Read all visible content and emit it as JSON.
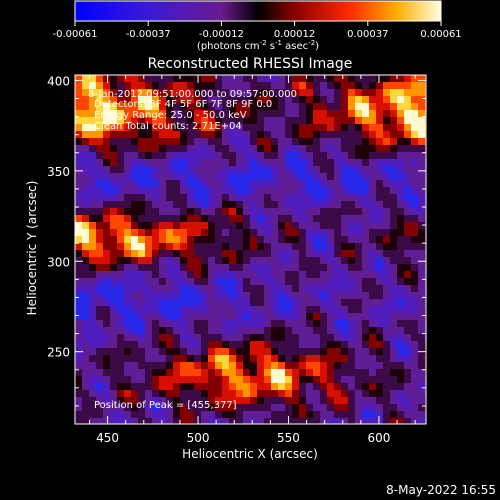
{
  "chart_data": {
    "type": "heatmap",
    "title": "Reconstructed RHESSI Image",
    "xlabel": "Heliocentric X (arcsec)",
    "ylabel": "Heliocentric Y (arcsec)",
    "xlim": [
      432,
      626
    ],
    "ylim": [
      210,
      403
    ],
    "xticks": [
      450,
      500,
      550,
      600
    ],
    "yticks": [
      250,
      300,
      350,
      400
    ],
    "colorbar": {
      "range": [
        -0.00061,
        0.00061
      ],
      "ticks": [
        "-0.00061",
        "-0.00037",
        "-0.00012",
        "0.00012",
        "0.00037",
        "0.00061"
      ],
      "unit_main": "(photons cm",
      "unit_exp1": "-2",
      "unit_mid": " s",
      "unit_exp2": "-1",
      "unit_mid2": " asec",
      "unit_exp3": "-2",
      "unit_end": ")"
    },
    "annotations": {
      "time": "8-Jan-2012 09:51:00.000 to 09:57:00.000",
      "detectors": "Detectors: 3F 4F 5F 6F 7F 8F 9F 0.0",
      "energy": "Energy Range: 25.0 - 50.0 keV",
      "clean": "Clean    Total counts: 2.71E+04",
      "peak": "Position of Peak = [455,377]"
    },
    "footer": "8-May-2022 16:55"
  }
}
